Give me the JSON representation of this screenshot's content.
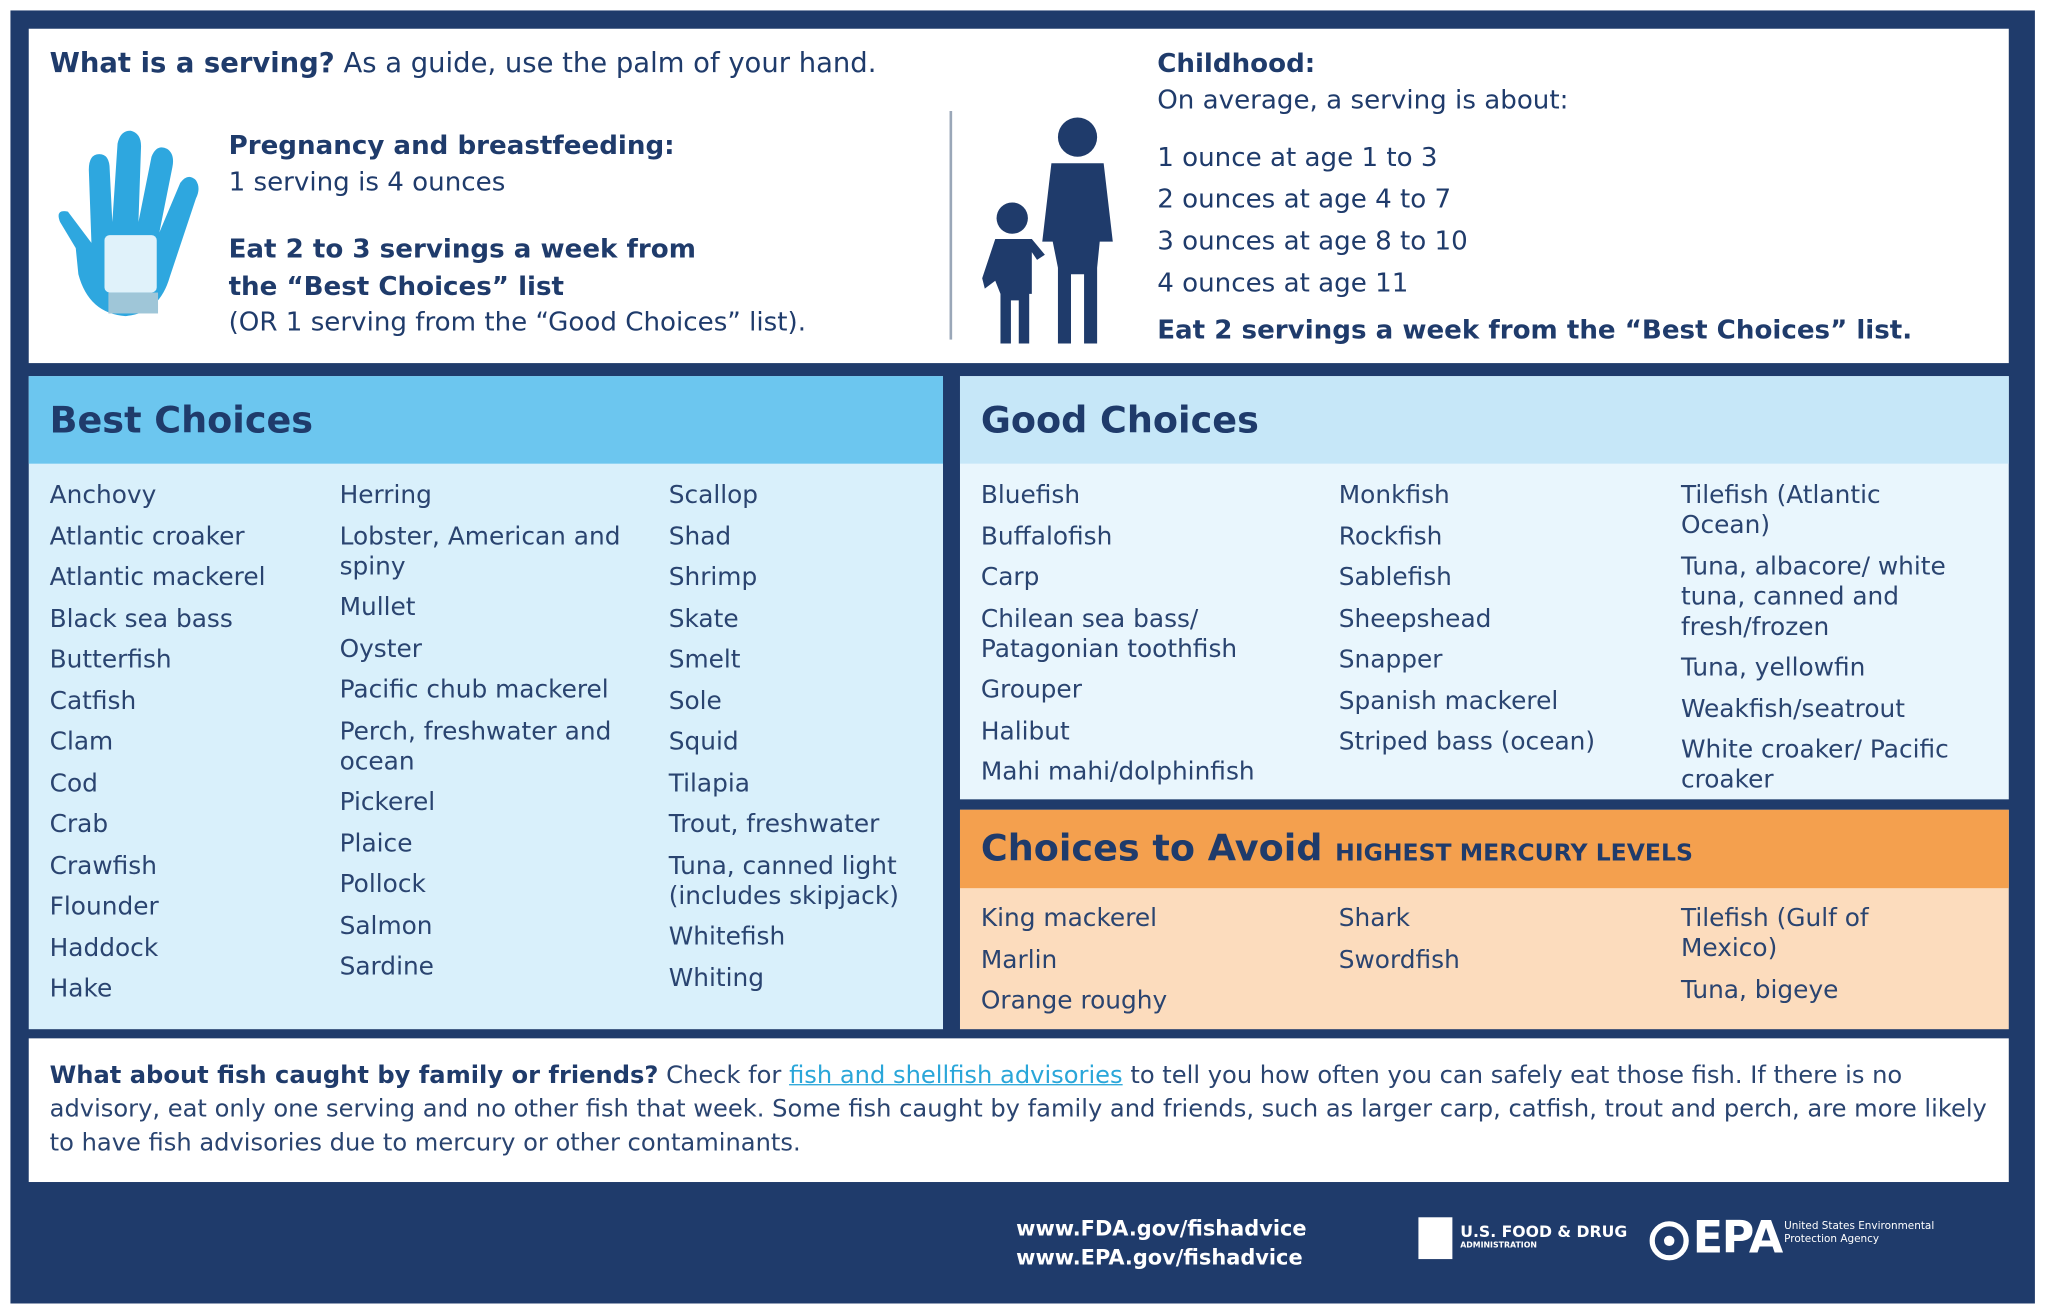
{
  "serving": {
    "question": "What is a serving?",
    "guide": "As a guide, use the palm of your hand.",
    "pregnancy_heading": "Pregnancy and breastfeeding:",
    "pregnancy_size": "1 serving is 4 ounces",
    "pregnancy_advice": "Eat 2 to 3 servings a week from the “Best Choices” list",
    "pregnancy_alt": "(OR 1 serving from the “Good Choices” list).",
    "childhood_heading": "Childhood:",
    "childhood_intro": "On average, a serving is about:",
    "childhood_sizes": [
      "1 ounce at age 1 to 3",
      "2 ounces at age 4 to 7",
      "3 ounces at age 8 to 10",
      "4 ounces at age 11"
    ],
    "childhood_advice": "Eat 2 servings a week from the “Best Choices” list."
  },
  "best_choices": {
    "title": "Best Choices",
    "columns": [
      [
        "Anchovy",
        "Atlantic croaker",
        "Atlantic mackerel",
        "Black sea bass",
        "Butterfish",
        "Catfish",
        "Clam",
        "Cod",
        "Crab",
        "Crawfish",
        "Flounder",
        "Haddock",
        "Hake"
      ],
      [
        "Herring",
        "Lobster, American and spiny",
        "Mullet",
        "Oyster",
        "Pacific chub mackerel",
        "Perch, freshwater and ocean",
        "Pickerel",
        "Plaice",
        "Pollock",
        "Salmon",
        "Sardine"
      ],
      [
        "Scallop",
        "Shad",
        "Shrimp",
        "Skate",
        "Smelt",
        "Sole",
        "Squid",
        "Tilapia",
        "Trout, freshwater",
        "Tuna, canned light (includes skipjack)",
        "Whitefish",
        "Whiting"
      ]
    ]
  },
  "good_choices": {
    "title": "Good Choices",
    "columns": [
      [
        "Bluefish",
        "Buffalofish",
        "Carp",
        "Chilean sea bass/ Patagonian toothfish",
        "Grouper",
        "Halibut",
        "Mahi mahi/dolphinfish"
      ],
      [
        "Monkfish",
        "Rockfish",
        "Sablefish",
        "Sheepshead",
        "Snapper",
        "Spanish mackerel",
        "Striped bass (ocean)"
      ],
      [
        "Tilefish (Atlantic Ocean)",
        "Tuna, albacore/ white tuna, canned and fresh/frozen",
        "Tuna, yellowfin",
        "Weakfish/seatrout",
        "White croaker/ Pacific croaker"
      ]
    ]
  },
  "avoid": {
    "title": "Choices to Avoid",
    "subtitle": "HIGHEST MERCURY LEVELS",
    "columns": [
      [
        "King mackerel",
        "Marlin",
        "Orange roughy"
      ],
      [
        "Shark",
        "Swordfish"
      ],
      [
        "Tilefish (Gulf of Mexico)",
        "Tuna, bigeye"
      ]
    ]
  },
  "caught": {
    "question": "What about fish caught by family or friends?",
    "before_link": "Check for",
    "link": "fish and shellfish advisories",
    "after_link": "to tell you how often you can safely eat those fish. If there is no advisory, eat only one serving and no other fish that week. Some fish caught by family and friends, such as larger carp, catfish, trout and perch, are more likely to have fish advisories due to mercury or other contaminants."
  },
  "footer": {
    "urls": [
      "www.FDA.gov/fishadvice",
      "www.EPA.gov/fishadvice"
    ],
    "fda": "U.S. FOOD & DRUG",
    "fda_sub": "ADMINISTRATION",
    "epa": "EPA",
    "epa_full": "United States Environmental Protection Agency"
  }
}
